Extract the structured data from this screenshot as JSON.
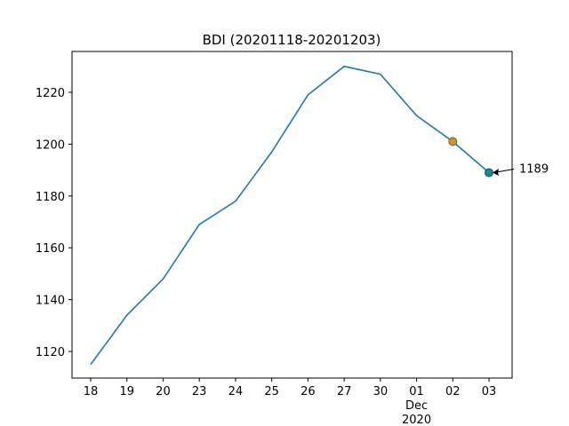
{
  "chart_data": {
    "type": "line",
    "title": "BDI (20201118-20201203)",
    "categories": [
      "18",
      "19",
      "20",
      "23",
      "24",
      "25",
      "26",
      "27",
      "30",
      "01\nDec\n2020",
      "02",
      "03"
    ],
    "series": [
      {
        "color": "#1f77b4",
        "values": [
          1115,
          1134,
          1148,
          1169,
          1178,
          1197,
          1219,
          1230,
          1227,
          1211,
          1201,
          1189
        ]
      }
    ],
    "markers": [
      {
        "category": "02",
        "color": "#e8891c",
        "edge": "#2e7d4f"
      },
      {
        "category": "03",
        "color": "#1a8a8a",
        "edge": "#1f4e79"
      }
    ],
    "annotations": [
      {
        "text": "1189",
        "category": "03"
      }
    ],
    "ylim": [
      1109.75,
      1235.75
    ],
    "yticks": [
      1120,
      1140,
      1160,
      1180,
      1200,
      1220
    ],
    "grid": false
  }
}
